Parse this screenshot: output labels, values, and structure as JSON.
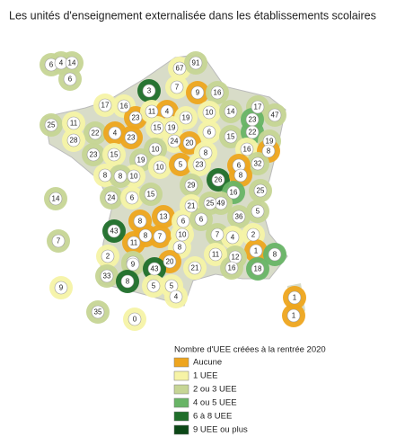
{
  "header": {
    "title": "Les unités d'enseignement externalisée dans les établissements scolaires"
  },
  "legend": {
    "title": "Nombre d'UEE créées à la rentrée 2020",
    "items": [
      {
        "label": "Aucune",
        "color": "#eea51e"
      },
      {
        "label": "1 UEE",
        "color": "#f6f3a6"
      },
      {
        "label": "2 ou 3 UEE",
        "color": "#c6d595"
      },
      {
        "label": "4 ou 5 UEE",
        "color": "#68b466"
      },
      {
        "label": "6 à 8 UEE",
        "color": "#1f6e2a"
      },
      {
        "label": "9 UEE ou plus",
        "color": "#0b4716"
      }
    ]
  },
  "departments": [
    {
      "value": 6,
      "class": 2
    },
    {
      "value": 4,
      "class": 2
    },
    {
      "value": 14,
      "class": 2
    },
    {
      "value": 6,
      "class": 2
    },
    {
      "value": 67,
      "class": 1
    },
    {
      "value": 91,
      "class": 2
    },
    {
      "value": 7,
      "class": 1
    },
    {
      "value": 3,
      "class": 4
    },
    {
      "value": 9,
      "class": 0
    },
    {
      "value": 16,
      "class": 2
    },
    {
      "value": 17,
      "class": 1
    },
    {
      "value": 16,
      "class": 1
    },
    {
      "value": 23,
      "class": 0
    },
    {
      "value": 11,
      "class": 1
    },
    {
      "value": 4,
      "class": 0
    },
    {
      "value": 19,
      "class": 1
    },
    {
      "value": 10,
      "class": 1
    },
    {
      "value": 14,
      "class": 2
    },
    {
      "value": 17,
      "class": 2
    },
    {
      "value": 47,
      "class": 2
    },
    {
      "value": 23,
      "class": 3
    },
    {
      "value": 25,
      "class": 2
    },
    {
      "value": 11,
      "class": 1
    },
    {
      "value": 22,
      "class": 2
    },
    {
      "value": 4,
      "class": 0
    },
    {
      "value": 15,
      "class": 1
    },
    {
      "value": 19,
      "class": 1
    },
    {
      "value": 28,
      "class": 1
    },
    {
      "value": 23,
      "class": 0
    },
    {
      "value": 24,
      "class": 1
    },
    {
      "value": 6,
      "class": 1
    },
    {
      "value": 15,
      "class": 2
    },
    {
      "value": 22,
      "class": 3
    },
    {
      "value": 19,
      "class": 2
    },
    {
      "value": 23,
      "class": 2
    },
    {
      "value": 15,
      "class": 1
    },
    {
      "value": 19,
      "class": 2
    },
    {
      "value": 10,
      "class": 2
    },
    {
      "value": 20,
      "class": 0
    },
    {
      "value": 8,
      "class": 1
    },
    {
      "value": 16,
      "class": 1
    },
    {
      "value": 8,
      "class": 0
    },
    {
      "value": 32,
      "class": 2
    },
    {
      "value": 10,
      "class": 1
    },
    {
      "value": 5,
      "class": 0
    },
    {
      "value": 23,
      "class": 1
    },
    {
      "value": 6,
      "class": 0
    },
    {
      "value": 8,
      "class": 1
    },
    {
      "value": 10,
      "class": 1
    },
    {
      "value": 8,
      "class": 2
    },
    {
      "value": 29,
      "class": 2
    },
    {
      "value": 26,
      "class": 4
    },
    {
      "value": 8,
      "class": 0
    },
    {
      "value": 14,
      "class": 2
    },
    {
      "value": 24,
      "class": 2
    },
    {
      "value": 6,
      "class": 1
    },
    {
      "value": 15,
      "class": 2
    },
    {
      "value": 16,
      "class": 3
    },
    {
      "value": 25,
      "class": 2
    },
    {
      "value": 21,
      "class": 1
    },
    {
      "value": 49,
      "class": 2
    },
    {
      "value": 25,
      "class": 2
    },
    {
      "value": 43,
      "class": 4
    },
    {
      "value": 13,
      "class": 0
    },
    {
      "value": 8,
      "class": 0
    },
    {
      "value": 6,
      "class": 1
    },
    {
      "value": 6,
      "class": 2
    },
    {
      "value": 36,
      "class": 2
    },
    {
      "value": 5,
      "class": 2
    },
    {
      "value": 8,
      "class": 0
    },
    {
      "value": 7,
      "class": 0
    },
    {
      "value": 10,
      "class": 1
    },
    {
      "value": 7,
      "class": 2
    },
    {
      "value": 4,
      "class": 1
    },
    {
      "value": 2,
      "class": 1
    },
    {
      "value": 7,
      "class": 2
    },
    {
      "value": 11,
      "class": 0
    },
    {
      "value": 8,
      "class": 1
    },
    {
      "value": 1,
      "class": 0
    },
    {
      "value": 8,
      "class": 3
    },
    {
      "value": 2,
      "class": 1
    },
    {
      "value": 10,
      "class": 2
    },
    {
      "value": 20,
      "class": 0
    },
    {
      "value": 12,
      "class": 2
    },
    {
      "value": 11,
      "class": 1
    },
    {
      "value": 33,
      "class": 2
    },
    {
      "value": 9,
      "class": 2
    },
    {
      "value": 43,
      "class": 4
    },
    {
      "value": 21,
      "class": 1
    },
    {
      "value": 16,
      "class": 2
    },
    {
      "value": 18,
      "class": 3
    },
    {
      "value": 9,
      "class": 1
    },
    {
      "value": 8,
      "class": 4
    },
    {
      "value": 5,
      "class": 1
    },
    {
      "value": 5,
      "class": 1
    },
    {
      "value": 4,
      "class": 1
    },
    {
      "value": 35,
      "class": 2
    },
    {
      "value": 0,
      "class": 1
    },
    {
      "value": 1,
      "class": 0
    },
    {
      "value": 1,
      "class": 0
    }
  ]
}
